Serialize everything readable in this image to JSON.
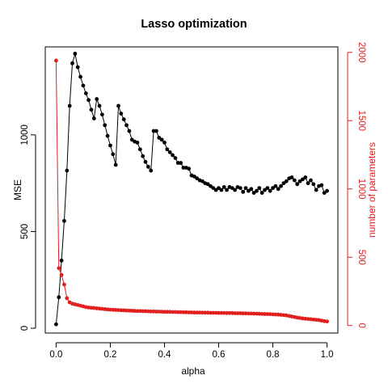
{
  "chart_data": {
    "type": "line",
    "title": "Lasso optimization",
    "xlabel": "alpha",
    "ylabel": "MSE",
    "y2label": "number of parameters",
    "xlim": [
      -0.04,
      1.04
    ],
    "ylim": [
      -25,
      1455
    ],
    "y2lim": [
      -55,
      2040
    ],
    "xticks": [
      0,
      0.2,
      0.4,
      0.6,
      0.8,
      1.0
    ],
    "xtick_labels": [
      "0.0",
      "0.2",
      "0.4",
      "0.6",
      "0.8",
      "1.0"
    ],
    "yticks": [
      0,
      500,
      1000
    ],
    "yticks2": [
      0,
      500,
      1000,
      1500,
      2000
    ],
    "colors": {
      "mse": "#000000",
      "params": "#e0201f"
    },
    "series": [
      {
        "name": "MSE",
        "axis": "left",
        "x": [
          0.0,
          0.01,
          0.02,
          0.03,
          0.04,
          0.05,
          0.06,
          0.07,
          0.08,
          0.09,
          0.1,
          0.11,
          0.12,
          0.13,
          0.14,
          0.15,
          0.16,
          0.17,
          0.18,
          0.19,
          0.2,
          0.21,
          0.22,
          0.23,
          0.24,
          0.25,
          0.26,
          0.27,
          0.28,
          0.29,
          0.3,
          0.31,
          0.32,
          0.33,
          0.34,
          0.35,
          0.36,
          0.37,
          0.38,
          0.39,
          0.4,
          0.41,
          0.42,
          0.43,
          0.44,
          0.45,
          0.46,
          0.47,
          0.48,
          0.49,
          0.5,
          0.51,
          0.52,
          0.53,
          0.54,
          0.55,
          0.56,
          0.57,
          0.58,
          0.59,
          0.6,
          0.61,
          0.62,
          0.63,
          0.64,
          0.65,
          0.66,
          0.67,
          0.68,
          0.69,
          0.7,
          0.71,
          0.72,
          0.73,
          0.74,
          0.75,
          0.76,
          0.77,
          0.78,
          0.79,
          0.8,
          0.81,
          0.82,
          0.83,
          0.84,
          0.85,
          0.86,
          0.87,
          0.88,
          0.89,
          0.9,
          0.91,
          0.92,
          0.93,
          0.94,
          0.95,
          0.96,
          0.97,
          0.98,
          0.99,
          1.0
        ],
        "values": [
          20,
          160,
          350,
          555,
          815,
          1150,
          1370,
          1420,
          1350,
          1300,
          1255,
          1215,
          1180,
          1130,
          1085,
          1185,
          1150,
          1105,
          1050,
          995,
          945,
          900,
          845,
          1150,
          1110,
          1080,
          1050,
          1020,
          975,
          965,
          960,
          925,
          890,
          860,
          835,
          815,
          1020,
          1020,
          985,
          975,
          960,
          925,
          910,
          895,
          880,
          855,
          855,
          830,
          830,
          825,
          790,
          785,
          775,
          765,
          760,
          750,
          745,
          735,
          725,
          715,
          725,
          715,
          730,
          715,
          730,
          725,
          715,
          730,
          725,
          705,
          725,
          710,
          720,
          700,
          710,
          725,
          700,
          715,
          725,
          710,
          725,
          735,
          720,
          735,
          750,
          760,
          775,
          780,
          765,
          745,
          760,
          770,
          780,
          750,
          765,
          745,
          715,
          735,
          740,
          700,
          710
        ]
      },
      {
        "name": "number of parameters",
        "axis": "right",
        "x": [
          0.0,
          0.01,
          0.02,
          0.03,
          0.04,
          0.05,
          0.06,
          0.07,
          0.08,
          0.09,
          0.1,
          0.11,
          0.12,
          0.13,
          0.14,
          0.15,
          0.16,
          0.17,
          0.18,
          0.19,
          0.2,
          0.21,
          0.22,
          0.23,
          0.24,
          0.25,
          0.26,
          0.27,
          0.28,
          0.29,
          0.3,
          0.31,
          0.32,
          0.33,
          0.34,
          0.35,
          0.36,
          0.37,
          0.38,
          0.39,
          0.4,
          0.41,
          0.42,
          0.43,
          0.44,
          0.45,
          0.46,
          0.47,
          0.48,
          0.49,
          0.5,
          0.51,
          0.52,
          0.53,
          0.54,
          0.55,
          0.56,
          0.57,
          0.58,
          0.59,
          0.6,
          0.61,
          0.62,
          0.63,
          0.64,
          0.65,
          0.66,
          0.67,
          0.68,
          0.69,
          0.7,
          0.71,
          0.72,
          0.73,
          0.74,
          0.75,
          0.76,
          0.77,
          0.78,
          0.79,
          0.8,
          0.81,
          0.82,
          0.83,
          0.84,
          0.85,
          0.86,
          0.87,
          0.88,
          0.89,
          0.9,
          0.91,
          0.92,
          0.93,
          0.94,
          0.95,
          0.96,
          0.97,
          0.98,
          0.99,
          1.0
        ],
        "values": [
          1940,
          420,
          370,
          300,
          200,
          170,
          160,
          155,
          150,
          145,
          140,
          135,
          132,
          130,
          128,
          126,
          124,
          122,
          120,
          118,
          116,
          115,
          114,
          113,
          112,
          111,
          110,
          109,
          108,
          107,
          106,
          106,
          105,
          105,
          104,
          103,
          103,
          102,
          102,
          101,
          100,
          100,
          100,
          99,
          99,
          98,
          98,
          97,
          97,
          96,
          96,
          95,
          95,
          95,
          94,
          94,
          94,
          93,
          93,
          93,
          92,
          92,
          92,
          91,
          91,
          91,
          90,
          90,
          90,
          89,
          89,
          88,
          88,
          87,
          87,
          86,
          85,
          84,
          84,
          83,
          82,
          81,
          80,
          78,
          76,
          74,
          70,
          66,
          62,
          58,
          55,
          52,
          50,
          48,
          46,
          44,
          42,
          40,
          36,
          32,
          30
        ]
      }
    ]
  }
}
